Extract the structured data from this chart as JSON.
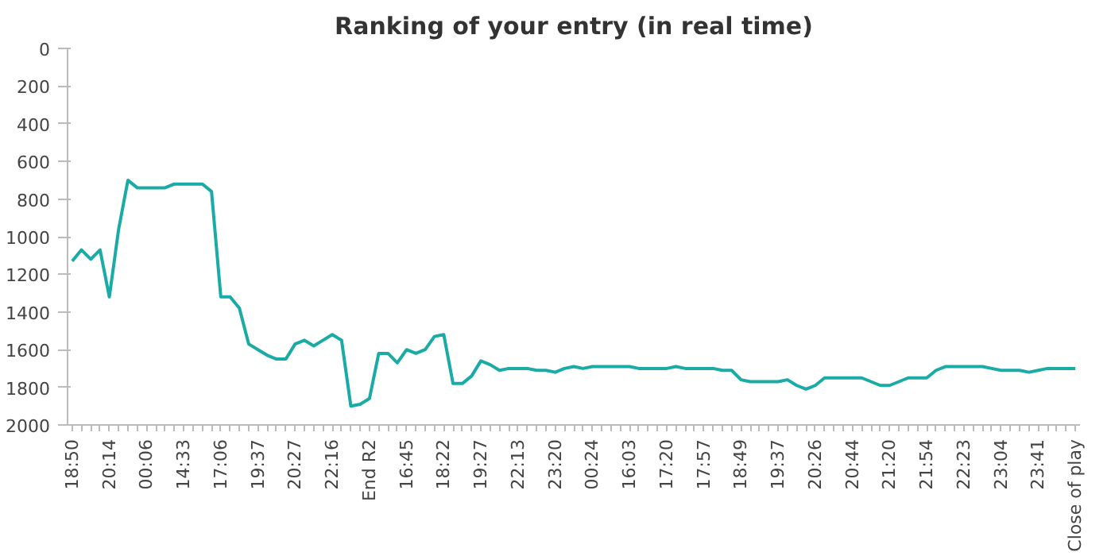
{
  "chart_data": {
    "type": "line",
    "title": "Ranking of your entry (in real time)",
    "categories": [
      "18:50",
      null,
      null,
      null,
      "20:14",
      null,
      null,
      null,
      "00:06",
      null,
      null,
      null,
      "14:33",
      null,
      null,
      null,
      "17:06",
      null,
      null,
      null,
      "19:37",
      null,
      null,
      null,
      "20:27",
      null,
      null,
      null,
      "22:16",
      null,
      null,
      null,
      "End R2",
      null,
      null,
      null,
      "16:45",
      null,
      null,
      null,
      "18:22",
      null,
      null,
      null,
      "19:27",
      null,
      null,
      null,
      "22:13",
      null,
      null,
      null,
      "23:20",
      null,
      null,
      null,
      "00:24",
      null,
      null,
      null,
      "16:03",
      null,
      null,
      null,
      "17:20",
      null,
      null,
      null,
      "17:57",
      null,
      null,
      null,
      "18:49",
      null,
      null,
      null,
      "19:37",
      null,
      null,
      null,
      "20:26",
      null,
      null,
      null,
      "20:44",
      null,
      null,
      null,
      "21:20",
      null,
      null,
      null,
      "21:54",
      null,
      null,
      null,
      "22:23",
      null,
      null,
      null,
      "23:04",
      null,
      null,
      null,
      "23:41",
      null,
      null,
      null,
      "Close of play"
    ],
    "series": [
      {
        "color": "#1aaba6",
        "values": [
          1130,
          1070,
          1120,
          1070,
          1320,
          960,
          700,
          740,
          740,
          740,
          740,
          720,
          720,
          720,
          720,
          760,
          1320,
          1320,
          1380,
          1570,
          1600,
          1630,
          1650,
          1650,
          1570,
          1550,
          1580,
          1550,
          1520,
          1550,
          1900,
          1890,
          1860,
          1620,
          1620,
          1670,
          1600,
          1620,
          1600,
          1530,
          1520,
          1780,
          1780,
          1740,
          1660,
          1680,
          1710,
          1700,
          1700,
          1700,
          1710,
          1710,
          1720,
          1700,
          1690,
          1700,
          1690,
          1690,
          1690,
          1690,
          1690,
          1700,
          1700,
          1700,
          1700,
          1690,
          1700,
          1700,
          1700,
          1700,
          1710,
          1710,
          1760,
          1770,
          1770,
          1770,
          1770,
          1760,
          1790,
          1810,
          1790,
          1750,
          1750,
          1750,
          1750,
          1750,
          1770,
          1790,
          1790,
          1770,
          1750,
          1750,
          1750,
          1710,
          1690,
          1690,
          1690,
          1690,
          1690,
          1700,
          1710,
          1710,
          1710,
          1720,
          1710,
          1700,
          1700,
          1700,
          1700
        ]
      }
    ],
    "ylim": [
      2000,
      0
    ],
    "yticks": [
      0,
      200,
      400,
      600,
      800,
      1000,
      1200,
      1400,
      1600,
      1800,
      2000
    ],
    "line_style": "solid"
  }
}
